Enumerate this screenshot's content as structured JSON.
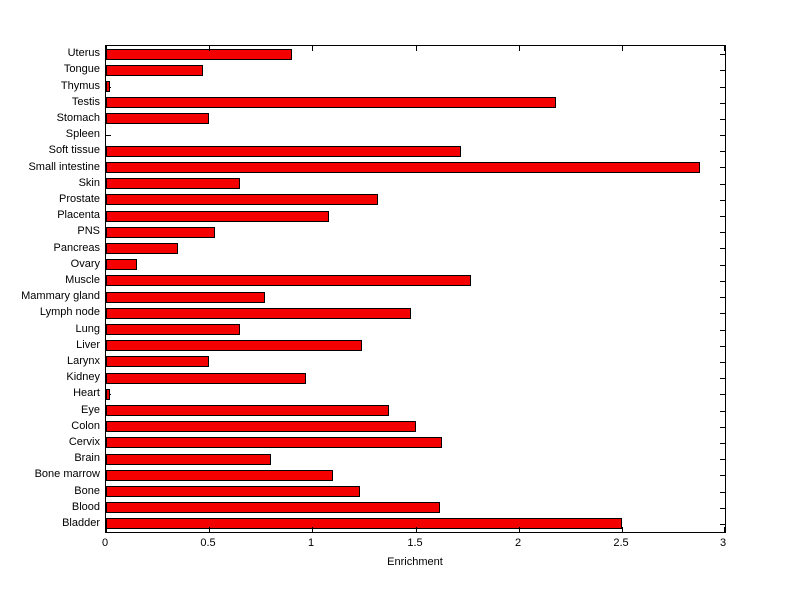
{
  "chart_data": {
    "type": "bar",
    "orientation": "horizontal",
    "title": "",
    "xlabel": "Enrichment",
    "ylabel": "",
    "xlim": [
      0,
      3
    ],
    "xticks": [
      0,
      0.5,
      1,
      1.5,
      2,
      2.5,
      3
    ],
    "xtick_labels": [
      "0",
      "0.5",
      "1",
      "1.5",
      "2",
      "2.5",
      "3"
    ],
    "grid": false,
    "legend": null,
    "bar_color": "#f40000",
    "bar_edge_color": "#000000",
    "categories": [
      "Uterus",
      "Tongue",
      "Thymus",
      "Testis",
      "Stomach",
      "Spleen",
      "Soft tissue",
      "Small intestine",
      "Skin",
      "Prostate",
      "Placenta",
      "PNS",
      "Pancreas",
      "Ovary",
      "Muscle",
      "Mammary gland",
      "Lymph node",
      "Lung",
      "Liver",
      "Larynx",
      "Kidney",
      "Heart",
      "Eye",
      "Colon",
      "Cervix",
      "Brain",
      "Bone marrow",
      "Bone",
      "Blood",
      "Bladder"
    ],
    "values": [
      0.9,
      0.47,
      0.02,
      2.18,
      0.5,
      0,
      1.72,
      2.88,
      0.65,
      1.32,
      1.08,
      0.53,
      0.35,
      0.15,
      1.77,
      0.77,
      1.48,
      0.65,
      1.24,
      0.5,
      0.97,
      0.02,
      1.37,
      1.5,
      1.63,
      0.8,
      1.1,
      1.23,
      1.62,
      2.5
    ]
  }
}
